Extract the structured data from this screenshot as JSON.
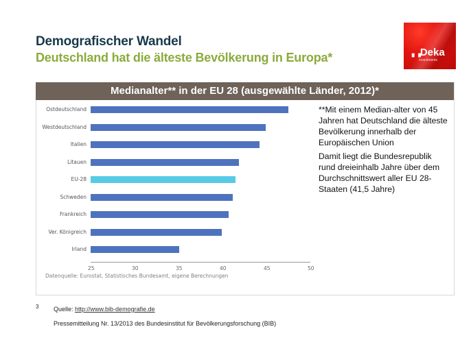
{
  "header": {
    "title": "Demografischer Wandel",
    "subtitle": "Deutschland hat die älteste Bevölkerung in Europa*"
  },
  "logo": {
    "brand": "Deka",
    "brand_prefix_icon": "bar-marks-icon",
    "sub": "Investments",
    "color": "#e0130f"
  },
  "chart_data": {
    "type": "bar",
    "orientation": "horizontal",
    "title": "Medianalter** in der EU 28 (ausgewählte Länder, 2012)*",
    "categories": [
      "Ostdeutschland",
      "Westdeutschland",
      "Italien",
      "Litauen",
      "EU-28",
      "Schweden",
      "Frankreich",
      "Ver. Königreich",
      "Irland"
    ],
    "values": [
      47.5,
      44.9,
      44.2,
      41.9,
      41.5,
      41.2,
      40.7,
      39.9,
      35.1
    ],
    "highlight": "EU-28",
    "colors": {
      "default": "#4e72be",
      "highlight": "#56cbe6",
      "header_bg": "#6e6259"
    },
    "xlim": [
      25,
      50
    ],
    "xticks": [
      25,
      30,
      35,
      40,
      45,
      50
    ],
    "xlabel": "",
    "ylabel": "",
    "grid": false,
    "legend": "none",
    "source": "Datenquelle: Eurostat, Statistisches Bundesamt, eigene Berechnungen"
  },
  "note": {
    "paragraph1": "**Mit einem Median-alter von 45 Jahren hat Deutschland die älteste Bevölkerung innerhalb der Europäischen Union",
    "paragraph2": "Damit liegt die Bundesrepublik rund dreieinhalb Jahre über dem Durchschnittswert aller EU 28-Staaten (41,5 Jahre)"
  },
  "footer": {
    "page_number": "3",
    "source_label": "Quelle: ",
    "source_link": "http://www.bib-demografie.de",
    "press_release": "Pressemitteilung  Nr. 13/2013  des Bundesinstitut für Bevölkerungsforschung  (BIB)"
  }
}
